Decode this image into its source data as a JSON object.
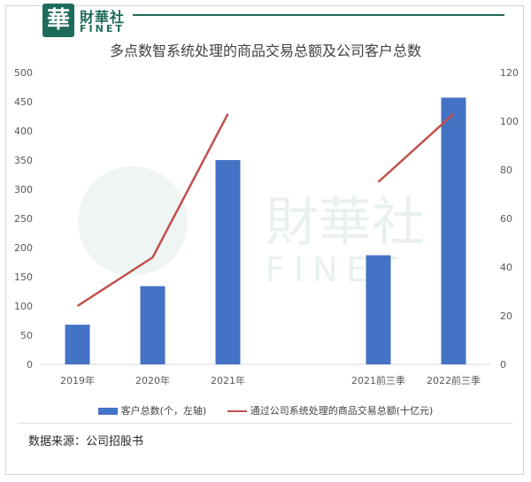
{
  "header": {
    "logo_char": "華",
    "logo_cn": "財華社",
    "logo_en": "FINET"
  },
  "watermark": {
    "cn": "財華社",
    "en": "FINET"
  },
  "source": "数据来源：公司招股书",
  "colors": {
    "bar": "#4472c4",
    "line": "#c0504d",
    "brand": "#1d6b5a"
  },
  "chart_data": {
    "type": "bar",
    "title": "多点数智系统处理的商品交易总额及公司客户总数",
    "categories": [
      "2019年",
      "2020年",
      "2021年",
      "",
      "2021前三季",
      "2022前三季"
    ],
    "series": [
      {
        "name": "客户总数(个，左轴)",
        "type": "bar",
        "axis": "left",
        "values": [
          68,
          134,
          350,
          null,
          187,
          457
        ]
      },
      {
        "name": "通过公司系统处理的商品交易总额(十亿元)",
        "type": "line",
        "axis": "right",
        "segments": [
          [
            0,
            2
          ],
          [
            4,
            5
          ]
        ],
        "values": [
          24,
          44,
          103,
          null,
          75,
          103
        ]
      }
    ],
    "ylim_left": [
      0,
      500
    ],
    "yticks_left": [
      0,
      50,
      100,
      150,
      200,
      250,
      300,
      350,
      400,
      450,
      500
    ],
    "ylim_right": [
      0,
      120
    ],
    "yticks_right": [
      0,
      20,
      40,
      60,
      80,
      100,
      120
    ],
    "grid": false,
    "legend": "bottom"
  }
}
